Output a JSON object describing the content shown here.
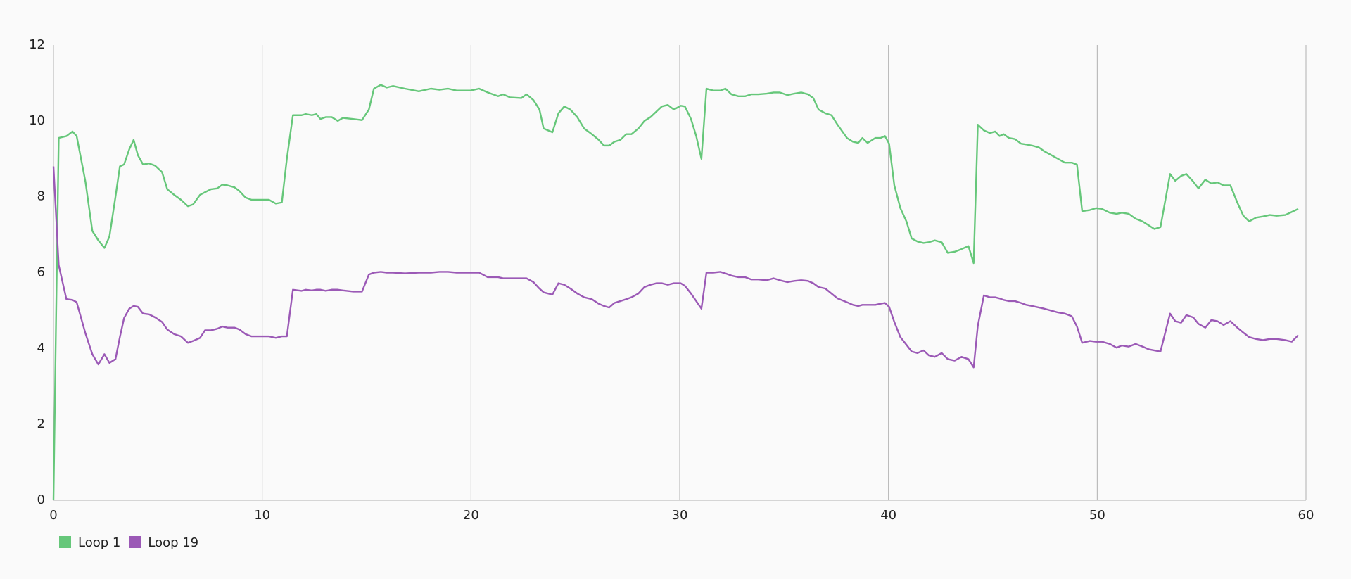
{
  "chart_data": {
    "type": "line",
    "x": [
      0,
      0.25,
      0.62,
      0.91,
      1.11,
      1.53,
      1.86,
      2.15,
      2.44,
      2.68,
      2.97,
      3.18,
      3.38,
      3.63,
      3.84,
      4.04,
      4.29,
      4.58,
      4.87,
      5.2,
      5.45,
      5.78,
      6.11,
      6.44,
      6.69,
      7.02,
      7.26,
      7.55,
      7.84,
      8.09,
      8.34,
      8.67,
      8.91,
      9.2,
      9.49,
      9.99,
      10.32,
      10.65,
      10.94,
      11.18,
      11.47,
      11.89,
      12.09,
      12.38,
      12.59,
      12.79,
      13.04,
      13.33,
      13.62,
      13.87,
      14.36,
      14.78,
      15.11,
      15.35,
      15.68,
      15.97,
      16.26,
      16.84,
      17.5,
      18.08,
      18.49,
      18.9,
      19.31,
      19.98,
      20.39,
      20.8,
      21.3,
      21.54,
      21.87,
      22.41,
      22.66,
      22.99,
      23.28,
      23.48,
      23.9,
      24.19,
      24.47,
      24.76,
      25.09,
      25.42,
      25.79,
      26.12,
      26.37,
      26.62,
      26.87,
      27.16,
      27.44,
      27.69,
      28.02,
      28.31,
      28.6,
      28.89,
      29.14,
      29.43,
      29.72,
      30.05,
      30.25,
      30.54,
      30.79,
      31.04,
      31.28,
      31.61,
      31.94,
      32.19,
      32.48,
      32.81,
      33.14,
      33.43,
      33.76,
      34.17,
      34.5,
      34.79,
      35.16,
      35.49,
      35.82,
      36.15,
      36.4,
      36.65,
      36.98,
      37.27,
      37.56,
      38.01,
      38.3,
      38.55,
      38.75,
      39,
      39.37,
      39.62,
      39.83,
      40.03,
      40.28,
      40.57,
      40.86,
      41.11,
      41.39,
      41.68,
      41.93,
      42.22,
      42.55,
      42.84,
      43.17,
      43.5,
      43.83,
      44.08,
      44.28,
      44.57,
      44.86,
      45.11,
      45.32,
      45.52,
      45.77,
      46.06,
      46.35,
      46.6,
      46.88,
      47.21,
      47.46,
      47.79,
      48.12,
      48.45,
      48.78,
      49.03,
      49.28,
      49.65,
      49.94,
      50.23,
      50.6,
      50.93,
      51.18,
      51.51,
      51.84,
      52.17,
      52.46,
      52.74,
      53.03,
      53.49,
      53.74,
      54.02,
      54.27,
      54.6,
      54.85,
      55.18,
      55.47,
      55.76,
      56.05,
      56.38,
      56.71,
      57,
      57.28,
      57.61,
      57.94,
      58.27,
      58.6,
      59.01,
      59.32,
      59.63
    ],
    "series": [
      {
        "name": "Loop 1",
        "color": "#66c77a",
        "values": [
          0,
          9.55,
          9.6,
          9.72,
          9.6,
          8.4,
          7.1,
          6.85,
          6.65,
          6.95,
          8.0,
          8.8,
          8.85,
          9.25,
          9.5,
          9.1,
          8.85,
          8.88,
          8.82,
          8.65,
          8.2,
          8.05,
          7.92,
          7.75,
          7.8,
          8.05,
          8.12,
          8.2,
          8.22,
          8.32,
          8.3,
          8.25,
          8.15,
          7.98,
          7.92,
          7.92,
          7.92,
          7.82,
          7.85,
          9.0,
          10.15,
          10.15,
          10.18,
          10.15,
          10.18,
          10.05,
          10.1,
          10.1,
          10.0,
          10.08,
          10.05,
          10.02,
          10.3,
          10.85,
          10.95,
          10.88,
          10.92,
          10.85,
          10.78,
          10.85,
          10.82,
          10.85,
          10.8,
          10.8,
          10.85,
          10.75,
          10.65,
          10.7,
          10.62,
          10.6,
          10.7,
          10.55,
          10.3,
          9.8,
          9.7,
          10.2,
          10.38,
          10.3,
          10.1,
          9.8,
          9.65,
          9.5,
          9.35,
          9.35,
          9.45,
          9.5,
          9.65,
          9.65,
          9.8,
          10.0,
          10.1,
          10.25,
          10.38,
          10.42,
          10.3,
          10.4,
          10.38,
          10.05,
          9.6,
          9.0,
          10.85,
          10.8,
          10.8,
          10.85,
          10.7,
          10.65,
          10.65,
          10.7,
          10.7,
          10.72,
          10.75,
          10.75,
          10.68,
          10.72,
          10.75,
          10.7,
          10.6,
          10.3,
          10.2,
          10.15,
          9.9,
          9.55,
          9.45,
          9.42,
          9.55,
          9.42,
          9.55,
          9.55,
          9.6,
          9.4,
          8.3,
          7.7,
          7.35,
          6.9,
          6.82,
          6.78,
          6.8,
          6.85,
          6.8,
          6.52,
          6.55,
          6.62,
          6.7,
          6.25,
          9.9,
          9.75,
          9.68,
          9.72,
          9.6,
          9.65,
          9.55,
          9.52,
          9.4,
          9.38,
          9.35,
          9.3,
          9.2,
          9.1,
          9.0,
          8.9,
          8.9,
          8.85,
          7.62,
          7.65,
          7.7,
          7.68,
          7.58,
          7.55,
          7.58,
          7.55,
          7.42,
          7.35,
          7.25,
          7.15,
          7.2,
          8.6,
          8.42,
          8.55,
          8.6,
          8.4,
          8.22,
          8.45,
          8.35,
          8.38,
          8.3,
          8.3,
          7.85,
          7.5,
          7.35,
          7.45,
          7.48,
          7.52,
          7.5,
          7.52,
          7.6,
          7.68
        ]
      },
      {
        "name": "Loop 19",
        "color": "#9b59b6",
        "values": [
          8.8,
          6.2,
          5.3,
          5.28,
          5.22,
          4.4,
          3.85,
          3.58,
          3.85,
          3.62,
          3.72,
          4.3,
          4.8,
          5.05,
          5.12,
          5.1,
          4.92,
          4.9,
          4.82,
          4.7,
          4.5,
          4.38,
          4.32,
          4.15,
          4.2,
          4.28,
          4.48,
          4.48,
          4.52,
          4.58,
          4.55,
          4.55,
          4.5,
          4.38,
          4.32,
          4.32,
          4.32,
          4.28,
          4.32,
          4.32,
          5.55,
          5.52,
          5.55,
          5.53,
          5.55,
          5.55,
          5.52,
          5.55,
          5.55,
          5.53,
          5.5,
          5.5,
          5.95,
          6.0,
          6.02,
          6.0,
          6.0,
          5.98,
          6.0,
          6.0,
          6.02,
          6.02,
          6.0,
          6.0,
          6.0,
          5.88,
          5.88,
          5.85,
          5.85,
          5.85,
          5.85,
          5.75,
          5.58,
          5.48,
          5.42,
          5.72,
          5.68,
          5.58,
          5.45,
          5.35,
          5.3,
          5.18,
          5.12,
          5.08,
          5.2,
          5.25,
          5.3,
          5.35,
          5.45,
          5.62,
          5.68,
          5.72,
          5.72,
          5.68,
          5.72,
          5.72,
          5.65,
          5.45,
          5.25,
          5.05,
          6.0,
          6.0,
          6.02,
          5.98,
          5.92,
          5.88,
          5.88,
          5.82,
          5.82,
          5.8,
          5.85,
          5.8,
          5.75,
          5.78,
          5.8,
          5.78,
          5.72,
          5.62,
          5.58,
          5.45,
          5.32,
          5.22,
          5.15,
          5.12,
          5.15,
          5.15,
          5.15,
          5.18,
          5.2,
          5.1,
          4.7,
          4.3,
          4.1,
          3.92,
          3.88,
          3.95,
          3.82,
          3.78,
          3.88,
          3.72,
          3.68,
          3.78,
          3.72,
          3.5,
          4.6,
          5.4,
          5.35,
          5.35,
          5.32,
          5.28,
          5.25,
          5.25,
          5.2,
          5.15,
          5.12,
          5.08,
          5.05,
          5.0,
          4.95,
          4.92,
          4.85,
          4.58,
          4.15,
          4.2,
          4.18,
          4.18,
          4.12,
          4.02,
          4.08,
          4.05,
          4.12,
          4.05,
          3.98,
          3.95,
          3.92,
          4.92,
          4.72,
          4.68,
          4.88,
          4.82,
          4.65,
          4.55,
          4.75,
          4.72,
          4.62,
          4.72,
          4.55,
          4.42,
          4.3,
          4.25,
          4.22,
          4.25,
          4.25,
          4.22,
          4.18,
          4.35
        ]
      }
    ],
    "xlim": [
      0,
      60
    ],
    "xticks": [
      0,
      10,
      20,
      30,
      40,
      50,
      60
    ],
    "ylim": [
      0,
      12
    ],
    "yticks": [
      0,
      2,
      4,
      6,
      8,
      10,
      12
    ],
    "grid": true,
    "legend": "bottom-left"
  }
}
